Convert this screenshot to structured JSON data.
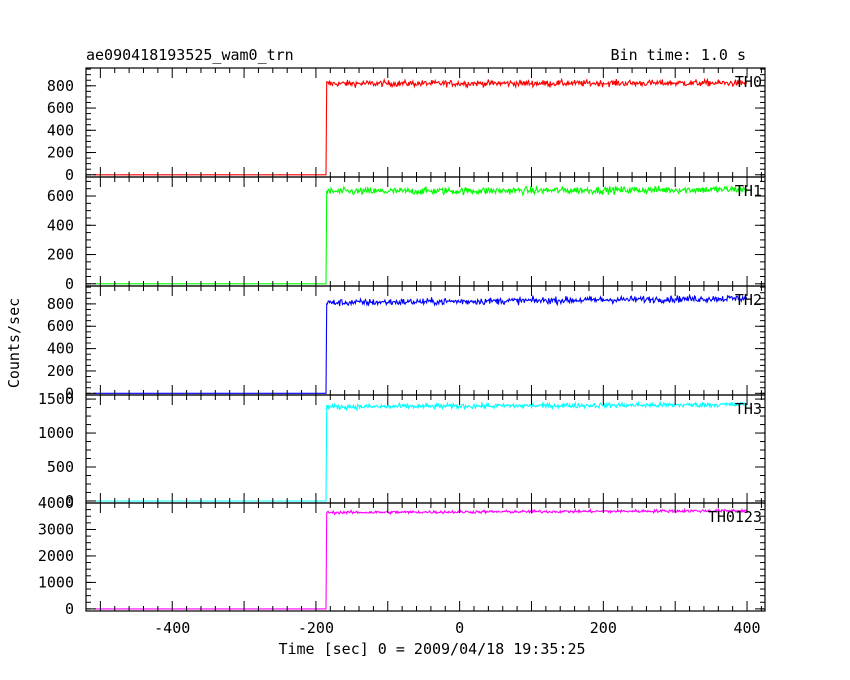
{
  "chart_data": {
    "type": "line",
    "title": "ae090418193525_wam0_trn",
    "subtitle": "Bin time: 1.0 s",
    "xlabel": "Time [sec] 0 = 2009/04/18 19:35:25",
    "ylabel": "Counts/sec",
    "xlim": [
      -520,
      425
    ],
    "xticks": [
      -400,
      -200,
      0,
      200,
      400
    ],
    "xtick_labels": [
      "-400",
      "-200",
      "0",
      "200",
      "400"
    ],
    "trigger_time": -185,
    "panels": [
      {
        "name": "TH0",
        "color": "#ff0000",
        "ylim": [
          -20,
          960
        ],
        "yticks": [
          0,
          200,
          400,
          600,
          800
        ],
        "ytick_labels": [
          "0",
          "200",
          "400",
          "600",
          "800"
        ],
        "x_start": -510,
        "x_end": 400,
        "baseline": 0,
        "level_start": 820,
        "level_end": 825,
        "noise": 28
      },
      {
        "name": "TH1",
        "color": "#00ff00",
        "ylim": [
          -15,
          730
        ],
        "yticks": [
          0,
          200,
          400,
          600
        ],
        "ytick_labels": [
          "0",
          "200",
          "400",
          "600"
        ],
        "x_start": -510,
        "x_end": 400,
        "baseline": 0,
        "level_start": 630,
        "level_end": 645,
        "noise": 25
      },
      {
        "name": "TH2",
        "color": "#0000ff",
        "ylim": [
          -15,
          960
        ],
        "yticks": [
          0,
          200,
          400,
          600,
          800
        ],
        "ytick_labels": [
          "0",
          "200",
          "400",
          "600",
          "800"
        ],
        "x_start": -510,
        "x_end": 400,
        "baseline": 0,
        "level_start": 810,
        "level_end": 850,
        "noise": 30
      },
      {
        "name": "TH3",
        "color": "#00ffff",
        "ylim": [
          -30,
          1560
        ],
        "yticks": [
          0,
          500,
          1000,
          1500
        ],
        "ytick_labels": [
          "0",
          "500",
          "1000",
          "1500"
        ],
        "x_start": -510,
        "x_end": 400,
        "baseline": 0,
        "level_start": 1385,
        "level_end": 1420,
        "noise": 38
      },
      {
        "name": "TH0123",
        "color": "#ff00ff",
        "ylim": [
          -80,
          4000
        ],
        "yticks": [
          0,
          1000,
          2000,
          3000,
          4000
        ],
        "ytick_labels": [
          "0",
          "1000",
          "2000",
          "3000",
          "4000"
        ],
        "x_start": -510,
        "x_end": 400,
        "baseline": 0,
        "level_start": 3640,
        "level_end": 3710,
        "noise": 55
      }
    ]
  }
}
